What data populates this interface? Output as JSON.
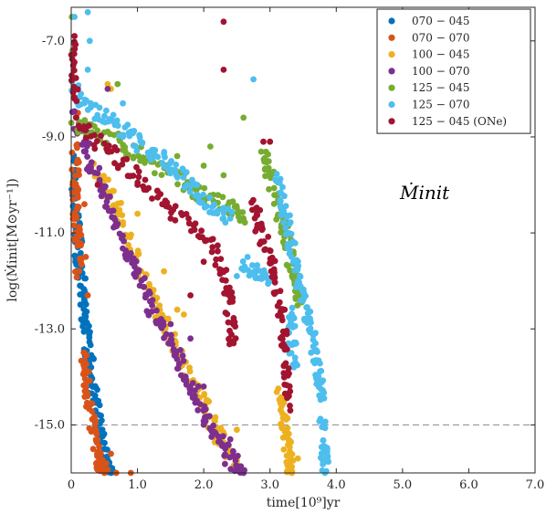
{
  "chart_data": {
    "type": "scatter",
    "xlabel": "time[10⁹]yr",
    "ylabel": "log(Ṁinit[M⊙yr⁻¹])",
    "annotation": "Ṁinit",
    "xlim": [
      0,
      7
    ],
    "ylim": [
      -16,
      -6.3
    ],
    "xticks": [
      "0",
      "1.0",
      "2.0",
      "3.0",
      "4.0",
      "5.0",
      "6.0",
      "7.0"
    ],
    "yticks": [
      "-7.0",
      "-9.0",
      "-11.0",
      "-13.0",
      "-15.0"
    ],
    "reference_line": {
      "y": -15.0,
      "style": "dashed"
    },
    "legend_position": "top-right",
    "series": [
      {
        "name": "070 − 045",
        "color": "#0072BD",
        "trails": [
          [
            [
              0.01,
              -9.3
            ],
            [
              0.02,
              -10.0
            ],
            [
              0.05,
              -10.5
            ],
            [
              0.1,
              -11.0
            ],
            [
              0.12,
              -11.6
            ],
            [
              0.15,
              -12.0
            ],
            [
              0.18,
              -12.5
            ],
            [
              0.22,
              -13.0
            ],
            [
              0.28,
              -13.6
            ],
            [
              0.32,
              -14.2
            ],
            [
              0.38,
              -14.8
            ],
            [
              0.45,
              -15.3
            ],
            [
              0.52,
              -15.8
            ],
            [
              0.6,
              -16.0
            ]
          ]
        ],
        "points": [
          [
            0.1,
            -11.3
          ],
          [
            0.15,
            -12.8
          ],
          [
            0.3,
            -13.8
          ],
          [
            0.5,
            -15.5
          ],
          [
            0.55,
            -15.9
          ]
        ]
      },
      {
        "name": "070 − 070",
        "color": "#D95319",
        "trails": [
          [
            [
              0.05,
              -9.2
            ],
            [
              0.07,
              -10.0
            ],
            [
              0.08,
              -10.6
            ],
            [
              0.1,
              -11.2
            ],
            [
              0.12,
              -11.8
            ]
          ],
          [
            [
              0.18,
              -13.6
            ],
            [
              0.22,
              -14.0
            ],
            [
              0.28,
              -14.6
            ],
            [
              0.35,
              -15.3
            ],
            [
              0.42,
              -15.8
            ],
            [
              0.5,
              -16.0
            ]
          ]
        ],
        "points": [
          [
            0.2,
            -10.4
          ],
          [
            0.22,
            -11.5
          ],
          [
            0.25,
            -12.3
          ],
          [
            0.6,
            -15.6
          ],
          [
            0.68,
            -16.0
          ],
          [
            0.9,
            -16.0
          ],
          [
            0.1,
            -8.5
          ]
        ]
      },
      {
        "name": "100 − 045",
        "color": "#EDB120",
        "trails": [
          [
            [
              0.35,
              -9.6
            ],
            [
              0.6,
              -10.2
            ],
            [
              0.8,
              -10.9
            ],
            [
              1.0,
              -11.6
            ],
            [
              1.2,
              -12.3
            ],
            [
              1.4,
              -12.9
            ],
            [
              1.6,
              -13.4
            ],
            [
              1.8,
              -14.0
            ],
            [
              2.0,
              -14.5
            ],
            [
              2.15,
              -15.0
            ],
            [
              2.3,
              -15.4
            ],
            [
              2.5,
              -15.8
            ]
          ],
          [
            [
              3.15,
              -14.3
            ],
            [
              3.2,
              -14.8
            ],
            [
              3.25,
              -15.3
            ],
            [
              3.3,
              -15.8
            ],
            [
              3.33,
              -16.0
            ]
          ]
        ],
        "points": [
          [
            0.55,
            -7.9
          ],
          [
            0.6,
            -8.0
          ],
          [
            1.0,
            -10.6
          ],
          [
            1.6,
            -12.6
          ],
          [
            1.7,
            -12.7
          ],
          [
            1.4,
            -11.8
          ],
          [
            2.5,
            -15.1
          ],
          [
            3.42,
            -15.7
          ]
        ]
      },
      {
        "name": "100 − 070",
        "color": "#7E2F8E",
        "trails": [
          [
            [
              0.05,
              -8.6
            ],
            [
              0.2,
              -9.1
            ],
            [
              0.3,
              -9.6
            ],
            [
              0.5,
              -10.2
            ],
            [
              0.7,
              -10.9
            ],
            [
              0.9,
              -11.6
            ],
            [
              1.1,
              -12.2
            ],
            [
              1.3,
              -12.8
            ],
            [
              1.5,
              -13.3
            ],
            [
              1.7,
              -13.9
            ],
            [
              1.9,
              -14.5
            ],
            [
              2.1,
              -15.0
            ],
            [
              2.3,
              -15.5
            ],
            [
              2.5,
              -15.9
            ],
            [
              2.6,
              -16.0
            ]
          ]
        ],
        "points": [
          [
            0.55,
            -8.0
          ],
          [
            1.5,
            -12.9
          ],
          [
            1.8,
            -13.2
          ],
          [
            2.0,
            -14.2
          ],
          [
            2.4,
            -15.3
          ]
        ]
      },
      {
        "name": "125 − 045",
        "color": "#77AC30",
        "trails": [
          [
            [
              0.0,
              -8.7
            ],
            [
              0.4,
              -8.9
            ],
            [
              0.8,
              -9.2
            ],
            [
              1.2,
              -9.5
            ],
            [
              1.6,
              -9.9
            ],
            [
              2.0,
              -10.2
            ],
            [
              2.4,
              -10.5
            ],
            [
              2.6,
              -10.7
            ]
          ],
          [
            [
              2.9,
              -9.4
            ],
            [
              3.0,
              -9.8
            ],
            [
              3.1,
              -10.3
            ],
            [
              3.2,
              -10.9
            ],
            [
              3.3,
              -11.5
            ],
            [
              3.4,
              -12.1
            ],
            [
              3.45,
              -12.4
            ]
          ]
        ],
        "points": [
          [
            0.01,
            -6.5
          ],
          [
            0.02,
            -7.2
          ],
          [
            0.03,
            -7.8
          ],
          [
            0.7,
            -7.9
          ],
          [
            2.1,
            -9.2
          ],
          [
            2.3,
            -9.8
          ],
          [
            2.6,
            -8.6
          ],
          [
            2.0,
            -9.6
          ],
          [
            1.6,
            -9.4
          ]
        ]
      },
      {
        "name": "125 − 070",
        "color": "#4DBEEE",
        "trails": [
          [
            [
              0.0,
              -8.0
            ],
            [
              0.3,
              -8.4
            ],
            [
              0.6,
              -8.7
            ],
            [
              0.9,
              -9.0
            ],
            [
              1.2,
              -9.3
            ],
            [
              1.5,
              -9.6
            ],
            [
              1.8,
              -10.0
            ],
            [
              2.1,
              -10.4
            ],
            [
              2.4,
              -10.7
            ]
          ],
          [
            [
              2.6,
              -11.6
            ],
            [
              2.8,
              -11.8
            ],
            [
              3.0,
              -12.0
            ]
          ],
          [
            [
              3.1,
              -9.9
            ],
            [
              3.2,
              -10.5
            ],
            [
              3.3,
              -11.1
            ],
            [
              3.4,
              -11.7
            ],
            [
              3.5,
              -12.3
            ],
            [
              3.6,
              -12.9
            ],
            [
              3.7,
              -13.5
            ],
            [
              3.75,
              -14.1
            ],
            [
              3.78,
              -14.4
            ]
          ],
          [
            [
              3.3,
              -12.6
            ],
            [
              3.33,
              -13.2
            ],
            [
              3.36,
              -13.8
            ]
          ],
          [
            [
              3.8,
              -15.0
            ],
            [
              3.82,
              -15.6
            ],
            [
              3.83,
              -16.0
            ]
          ]
        ],
        "points": [
          [
            0.25,
            -6.4
          ],
          [
            0.05,
            -6.5
          ],
          [
            0.28,
            -7.0
          ],
          [
            0.25,
            -7.6
          ],
          [
            2.75,
            -7.8
          ],
          [
            0.78,
            -8.3
          ],
          [
            1.75,
            -10.0
          ],
          [
            2.3,
            -10.7
          ],
          [
            2.5,
            -11.9
          ]
        ]
      },
      {
        "name": "125 − 045 (ONe)",
        "color": "#A2142F",
        "trails": [
          [
            [
              0.0,
              -7.0
            ],
            [
              0.02,
              -7.6
            ],
            [
              0.05,
              -8.2
            ]
          ],
          [
            [
              0.1,
              -8.7
            ],
            [
              0.5,
              -9.2
            ],
            [
              0.9,
              -9.7
            ],
            [
              1.3,
              -10.2
            ],
            [
              1.7,
              -10.7
            ],
            [
              2.1,
              -11.2
            ],
            [
              2.3,
              -11.9
            ],
            [
              2.4,
              -12.6
            ],
            [
              2.45,
              -13.3
            ]
          ],
          [
            [
              2.7,
              -10.3
            ],
            [
              2.85,
              -10.9
            ],
            [
              3.0,
              -11.5
            ],
            [
              3.1,
              -12.2
            ],
            [
              3.2,
              -13.0
            ],
            [
              3.25,
              -13.8
            ],
            [
              3.3,
              -14.6
            ]
          ]
        ],
        "points": [
          [
            2.3,
            -6.6
          ],
          [
            2.3,
            -7.6
          ],
          [
            2.9,
            -9.1
          ],
          [
            3.0,
            -9.1
          ],
          [
            0.4,
            -10.0
          ],
          [
            1.8,
            -12.3
          ],
          [
            2.0,
            -11.6
          ],
          [
            1.5,
            -10.7
          ],
          [
            1.0,
            -10.0
          ],
          [
            0.05,
            -6.9
          ]
        ]
      }
    ]
  }
}
